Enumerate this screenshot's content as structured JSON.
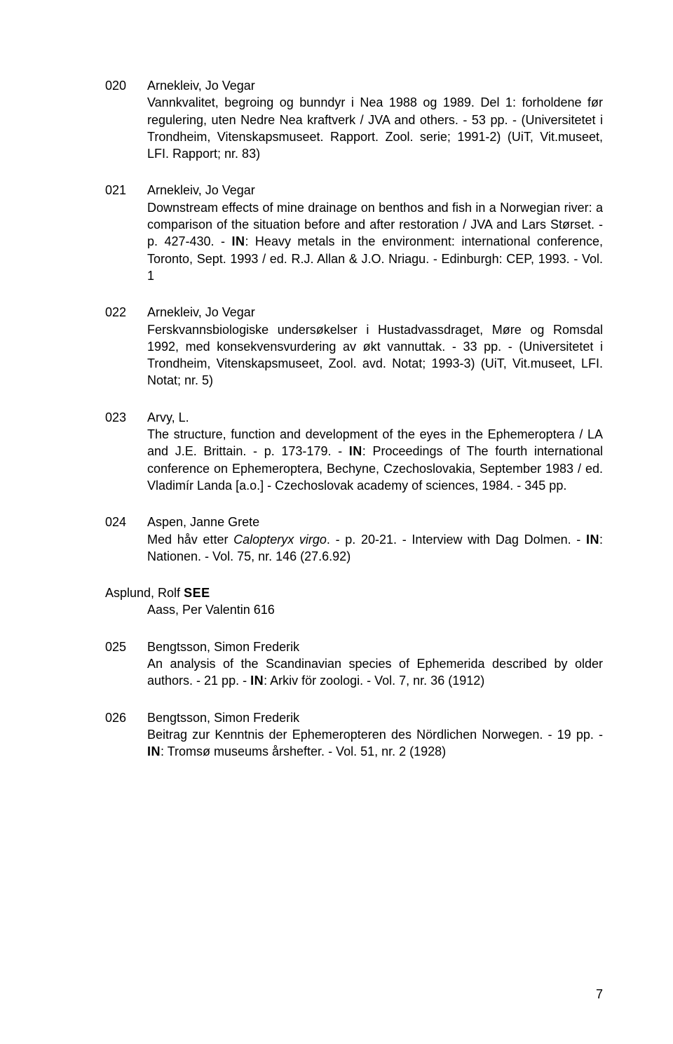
{
  "entries": [
    {
      "num": "020",
      "author": "Arnekleiv, Jo Vegar",
      "body": "Vannkvalitet, begroing og bunndyr i Nea 1988 og 1989. Del 1: forholdene før regulering, uten Nedre Nea kraftverk / JVA and others. - 53 pp. - (Universitetet i Trondheim, Vitenskapsmuseet. Rapport. Zool. serie; 1991-2) (UiT, Vit.museet, LFI. Rapport; nr. 83)"
    },
    {
      "num": "021",
      "author": "Arnekleiv, Jo Vegar",
      "body_pre": "Downstream effects of mine drainage on benthos and fish in a Norwegian river: a comparison of the situation before and after restoration / JVA and Lars Størset. - p. 427-430. - ",
      "in": "IN",
      "body_post": ": Heavy metals in the environment: international conference, Toronto, Sept. 1993 / ed. R.J. Allan & J.O. Nriagu. - Edinburgh: CEP, 1993. - Vol. 1"
    },
    {
      "num": "022",
      "author": "Arnekleiv, Jo Vegar",
      "body": "Ferskvannsbiologiske undersøkelser i Hustadvassdraget, Møre og Romsdal 1992, med konsekvensvurdering av økt vannuttak. - 33 pp. - (Universitetet i Trondheim, Vitenskapsmuseet, Zool. avd. Notat; 1993-3) (UiT, Vit.museet, LFI. Notat; nr. 5)"
    },
    {
      "num": "023",
      "author": "Arvy, L.",
      "body_pre": "The structure, function and development of the eyes in the Ephemeroptera / LA and J.E. Brittain. - p. 173-179. - ",
      "in": "IN",
      "body_post": ": Proceedings of The fourth international conference on Ephemeroptera, Bechyne, Czechoslovakia, September 1983 / ed. Vladimír Landa [a.o.] - Czechoslovak academy of sciences, 1984. - 345 pp."
    },
    {
      "num": "024",
      "author": "Aspen, Janne Grete",
      "body_pre": "Med håv etter ",
      "italic": "Calopteryx virgo",
      "body_mid": ". - p. 20-21. - Interview with Dag Dolmen. - ",
      "in": "IN",
      "body_post": ": Nationen. - Vol. 75, nr. 146 (27.6.92)"
    }
  ],
  "see": {
    "name_pre": "Asplund, Rolf ",
    "see": "SEE",
    "ref": "Aass, Per Valentin 616"
  },
  "entries2": [
    {
      "num": "025",
      "author": "Bengtsson, Simon Frederik",
      "body_pre": "An analysis of the Scandinavian species of Ephemerida described by older authors. - 21 pp. - ",
      "in": "IN",
      "body_post": ": Arkiv för zoologi. - Vol. 7, nr. 36 (1912)"
    },
    {
      "num": "026",
      "author": "Bengtsson, Simon Frederik",
      "body_pre": "Beitrag zur Kenntnis der Ephemeropteren des Nördlichen Norwegen. - 19 pp. - ",
      "in": "IN",
      "body_post": ": Tromsø museums årshefter. - Vol. 51, nr. 2 (1928)"
    }
  ],
  "page_number": "7"
}
